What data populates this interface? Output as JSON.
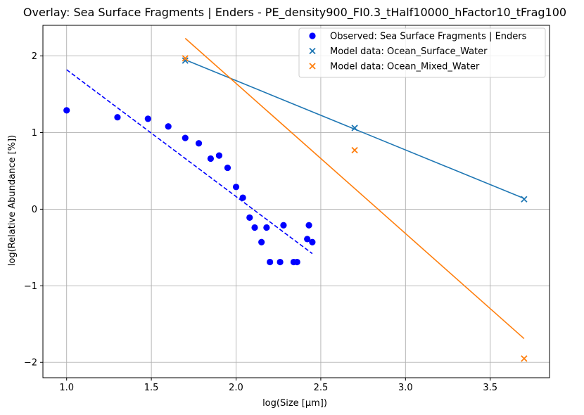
{
  "chart_data": {
    "type": "scatter",
    "title": "Overlay: Sea Surface Fragments | Enders - PE_density900_FI0.3_tHalf10000_hFactor10_tFrag100",
    "xlabel": "log(Size [μm])",
    "ylabel": "log(Relative Abundance [%])",
    "xlim": [
      0.86,
      3.85
    ],
    "ylim": [
      -2.2,
      2.4
    ],
    "xticks": [
      1.0,
      1.5,
      2.0,
      2.5,
      3.0,
      3.5
    ],
    "xtick_labels": [
      "1.0",
      "1.5",
      "2.0",
      "2.5",
      "3.0",
      "3.5"
    ],
    "yticks": [
      -2,
      -1,
      0,
      1,
      2
    ],
    "ytick_labels": [
      "−2",
      "−1",
      "0",
      "1",
      "2"
    ],
    "grid": true,
    "legend_position": "top-right",
    "series": [
      {
        "name": "Observed: Sea Surface Fragments | Enders",
        "marker": "circle",
        "color": "#0000ff",
        "points": [
          [
            1.0,
            1.29
          ],
          [
            1.3,
            1.2
          ],
          [
            1.48,
            1.18
          ],
          [
            1.6,
            1.08
          ],
          [
            1.7,
            0.93
          ],
          [
            1.78,
            0.86
          ],
          [
            1.85,
            0.66
          ],
          [
            1.9,
            0.7
          ],
          [
            1.95,
            0.54
          ],
          [
            2.0,
            0.29
          ],
          [
            2.04,
            0.15
          ],
          [
            2.08,
            -0.11
          ],
          [
            2.11,
            -0.24
          ],
          [
            2.15,
            -0.43
          ],
          [
            2.18,
            -0.24
          ],
          [
            2.2,
            -0.69
          ],
          [
            2.26,
            -0.69
          ],
          [
            2.28,
            -0.21
          ],
          [
            2.34,
            -0.69
          ],
          [
            2.36,
            -0.69
          ],
          [
            2.42,
            -0.39
          ],
          [
            2.43,
            -0.21
          ],
          [
            2.45,
            -0.43
          ]
        ]
      },
      {
        "name": "Model data: Ocean_Surface_Water",
        "marker": "x",
        "color": "#1f77b4",
        "points": [
          [
            1.7,
            1.94
          ],
          [
            2.7,
            1.06
          ],
          [
            3.7,
            0.13
          ]
        ]
      },
      {
        "name": "Model data: Ocean_Mixed_Water",
        "marker": "x",
        "color": "#ff7f0e",
        "points": [
          [
            1.7,
            1.97
          ],
          [
            2.7,
            0.77
          ],
          [
            3.7,
            -1.95
          ]
        ]
      }
    ],
    "fit_lines": [
      {
        "color": "#0000ff",
        "style": "dashed",
        "points": [
          [
            1.0,
            1.82
          ],
          [
            2.45,
            -0.58
          ]
        ]
      },
      {
        "color": "#1f77b4",
        "style": "solid",
        "points": [
          [
            1.7,
            1.95
          ],
          [
            3.7,
            0.14
          ]
        ]
      },
      {
        "color": "#ff7f0e",
        "style": "solid",
        "points": [
          [
            1.7,
            2.23
          ],
          [
            3.7,
            -1.69
          ]
        ]
      }
    ]
  }
}
